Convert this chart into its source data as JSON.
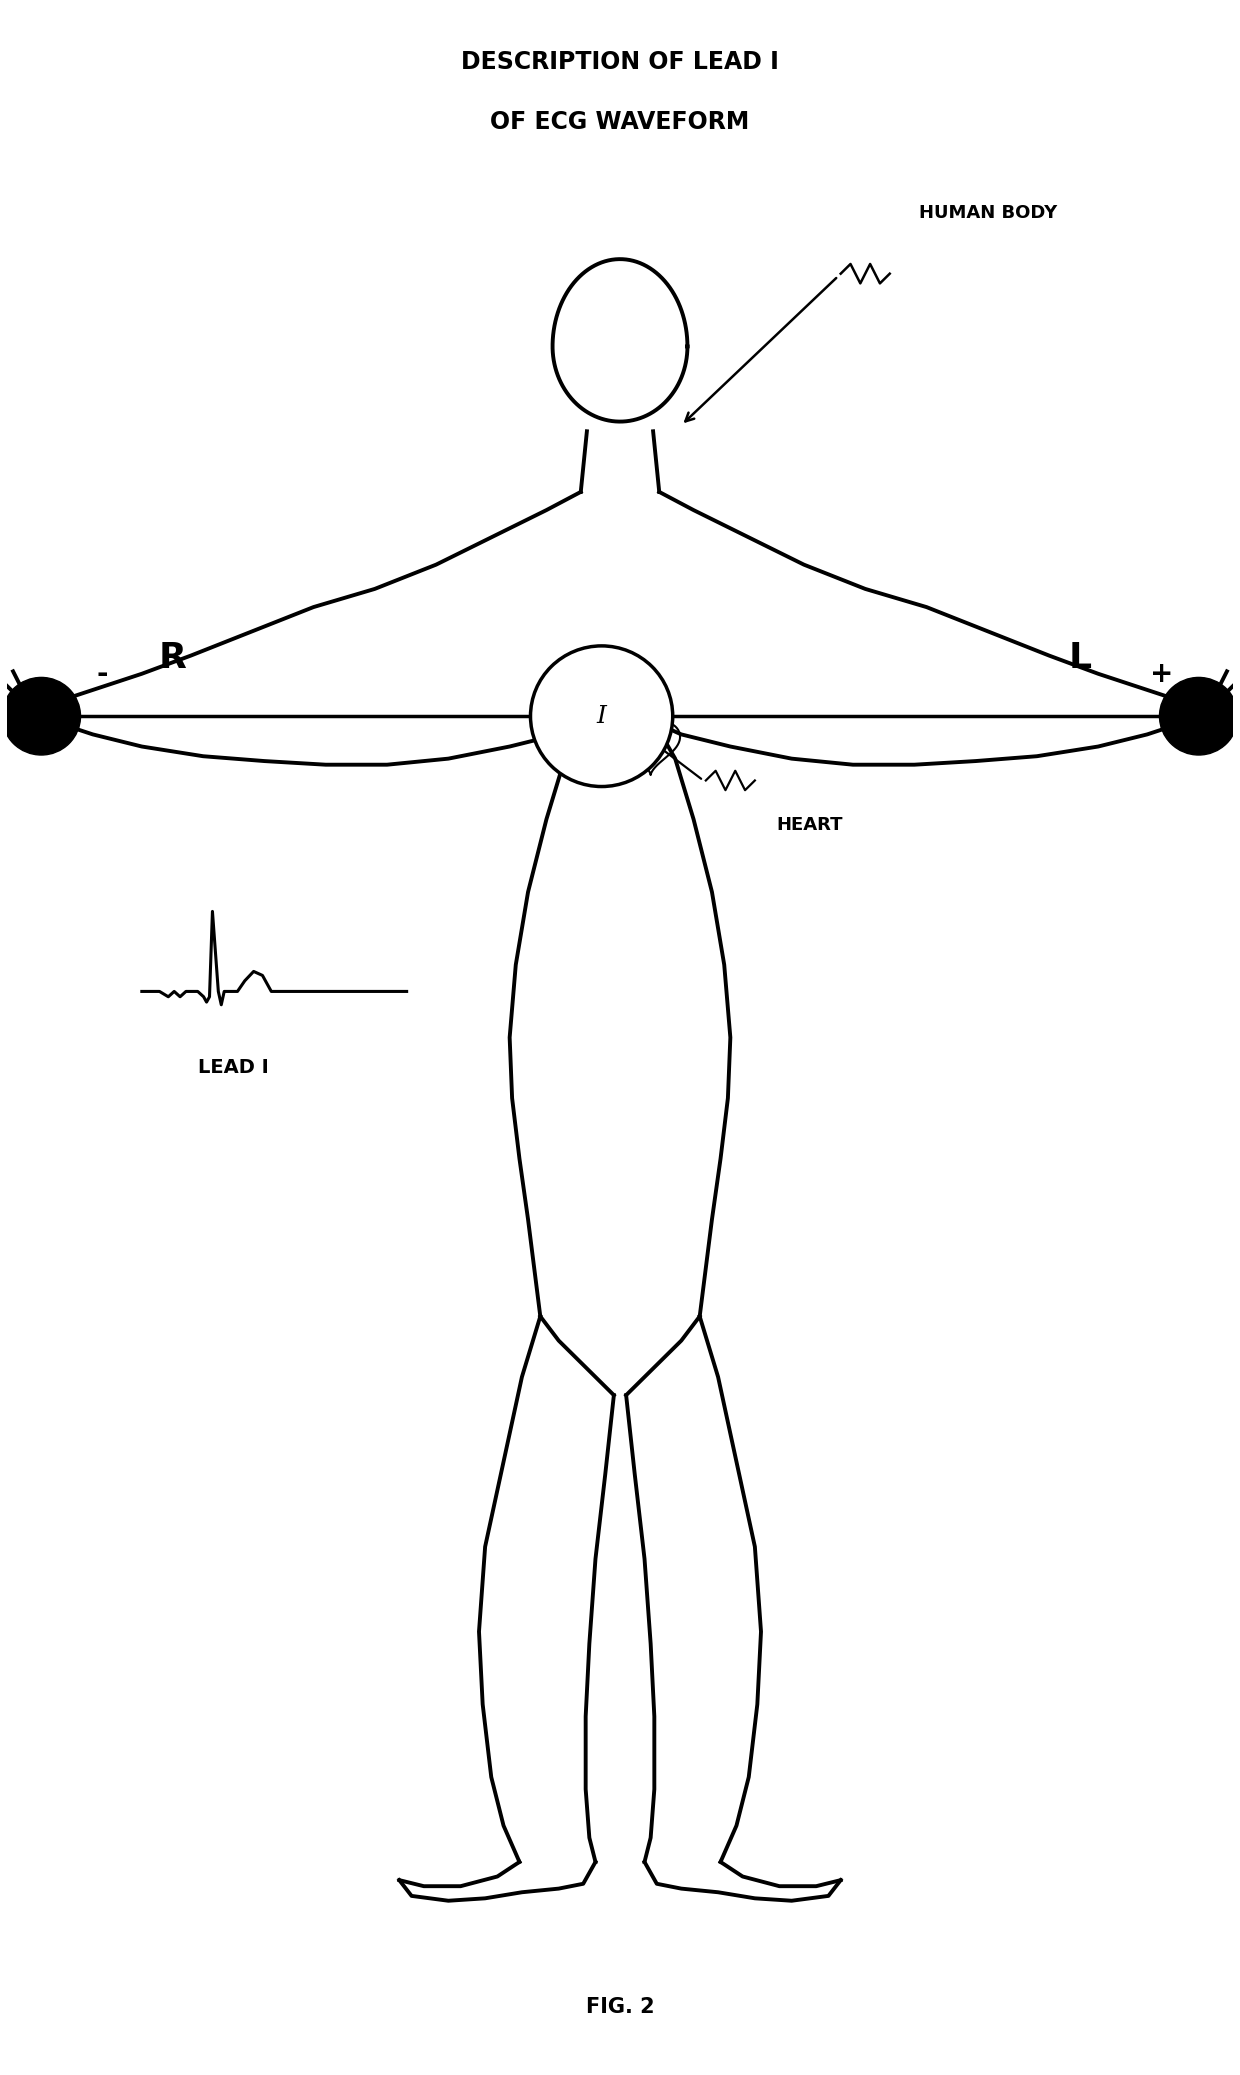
{
  "title_line1": "DESCRIPTION OF LEAD I",
  "title_line2": "OF ECG WAVEFORM",
  "fig_label": "FIG. 2",
  "label_human_body": "HUMAN BODY",
  "label_heart": "HEART",
  "label_lead_i": "LEAD I",
  "label_R": "R",
  "label_L": "L",
  "label_minus": "-",
  "label_plus": "+",
  "label_I": "I",
  "bg_color": "#ffffff",
  "line_color": "#000000",
  "title_fontsize": 17,
  "fig_label_fontsize": 15,
  "lw_body": 2.8
}
